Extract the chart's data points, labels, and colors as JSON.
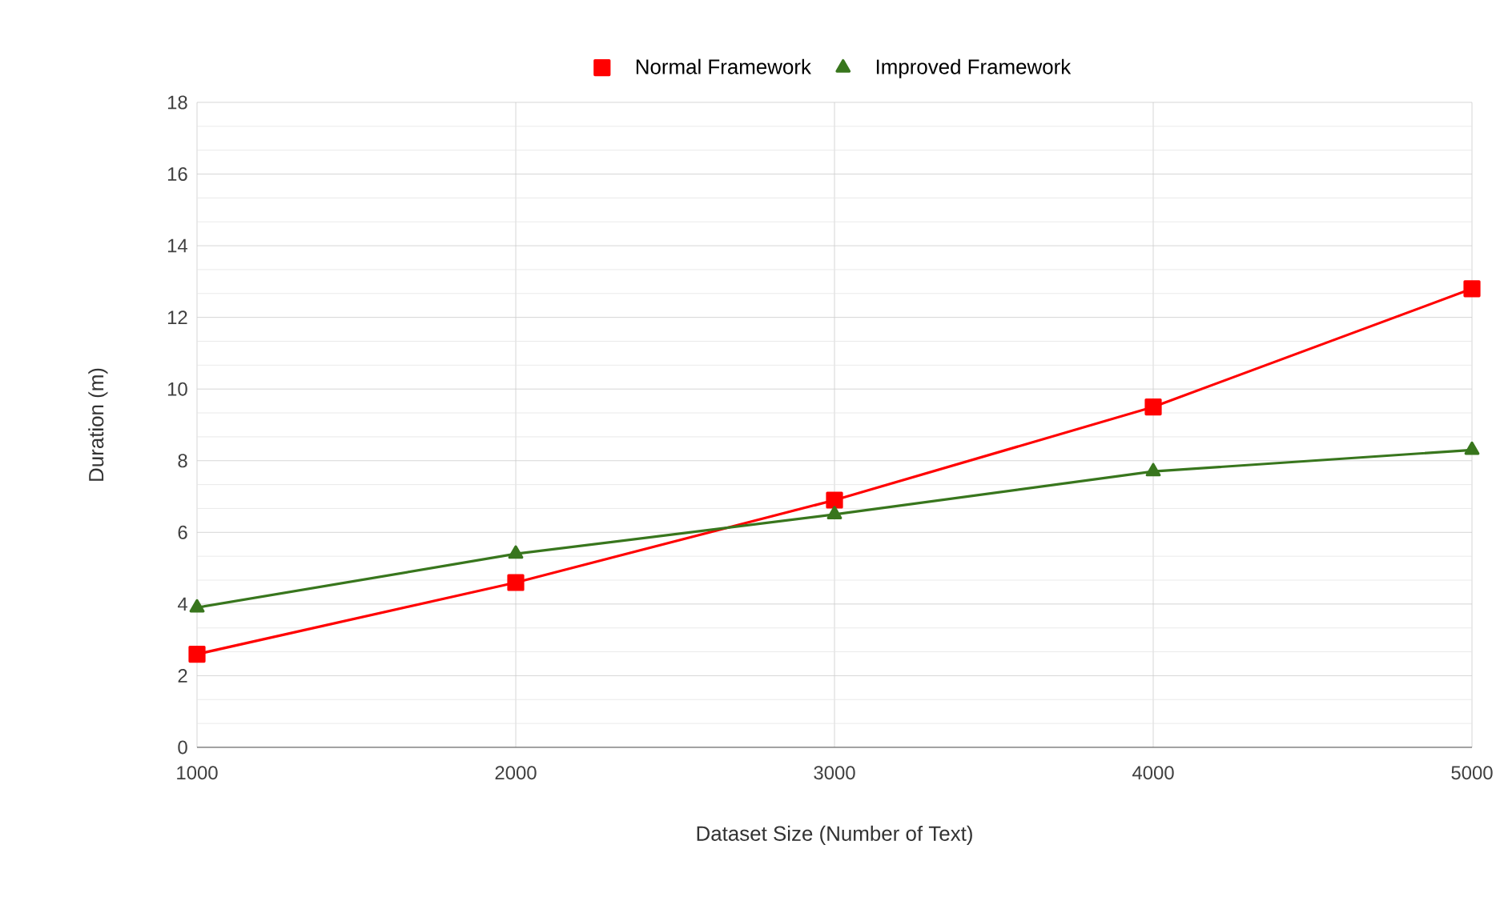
{
  "chart_data": {
    "type": "line",
    "xlabel": "Dataset Size (Number of Text)",
    "ylabel": "Duration (m)",
    "x": [
      1000,
      2000,
      3000,
      4000,
      5000
    ],
    "series": [
      {
        "name": "Normal Framework",
        "color": "#ff0000",
        "marker": "square",
        "values": [
          2.6,
          4.6,
          6.9,
          9.5,
          12.8
        ]
      },
      {
        "name": "Improved Framework",
        "color": "#38761d",
        "marker": "triangle",
        "values": [
          3.9,
          5.4,
          6.5,
          7.7,
          8.3
        ]
      }
    ],
    "xlim": [
      1000,
      5000
    ],
    "xticks": [
      1000,
      2000,
      3000,
      4000,
      5000
    ],
    "ylim": [
      0,
      18
    ],
    "yticks": [
      0,
      2,
      4,
      6,
      8,
      10,
      12,
      14,
      16,
      18
    ],
    "grid": true,
    "legend": "top"
  }
}
